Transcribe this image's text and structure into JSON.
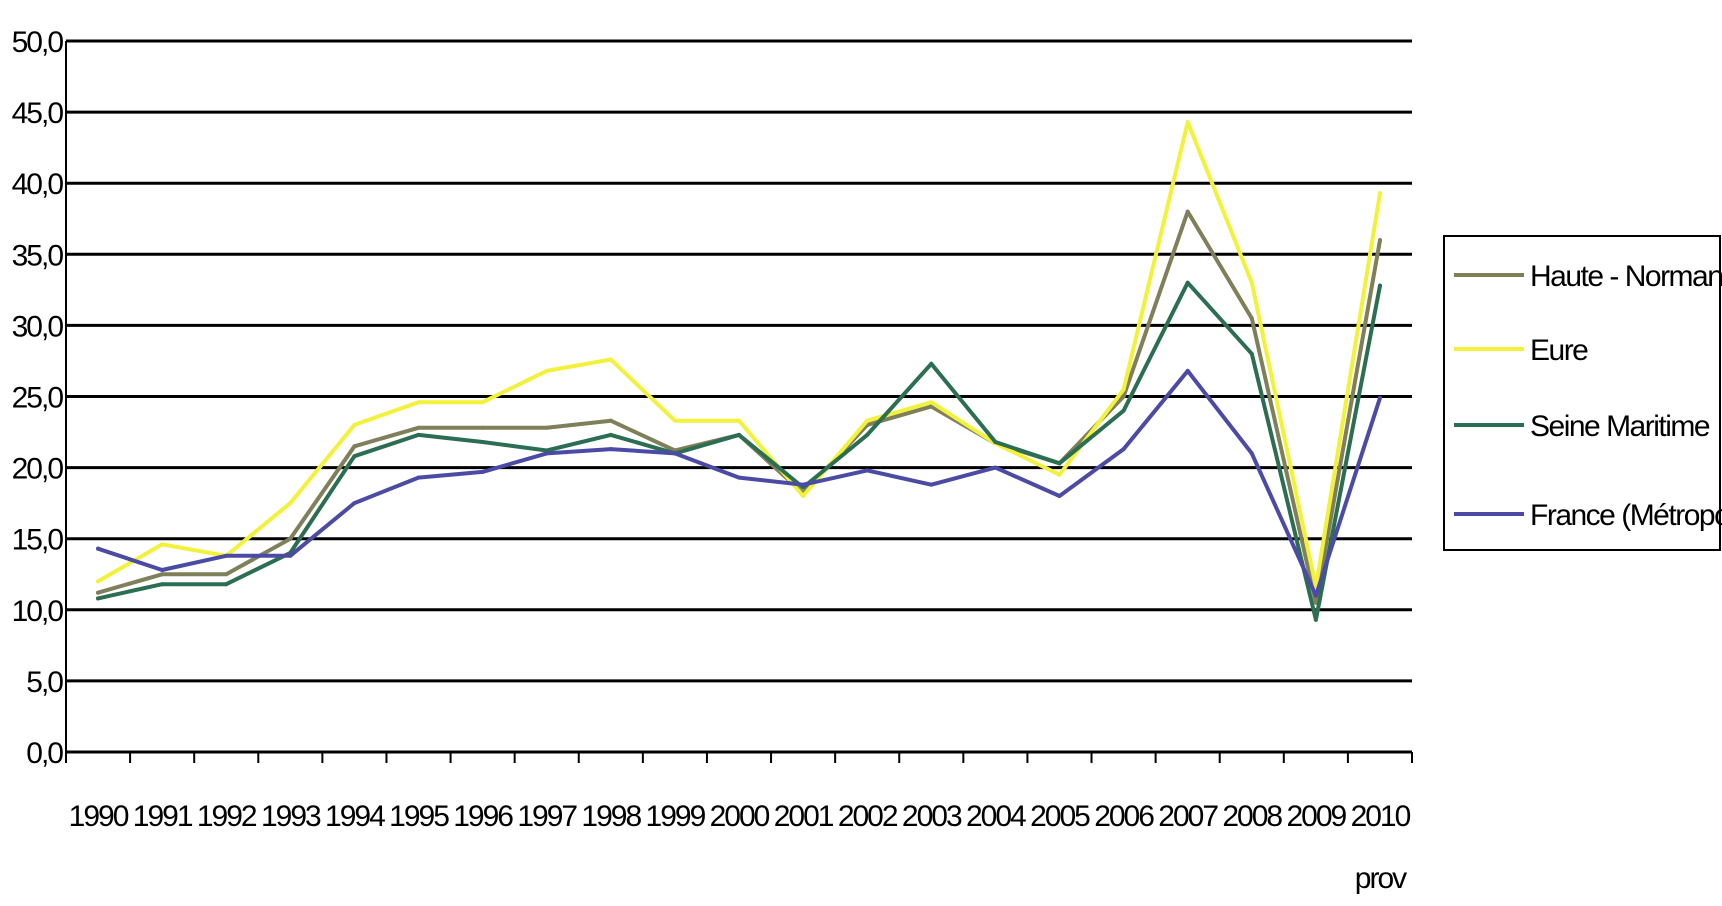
{
  "chart_data": {
    "type": "line",
    "title": "",
    "xlabel": "",
    "ylabel": "",
    "categories": [
      "1990",
      "1991",
      "1992",
      "1993",
      "1994",
      "1995",
      "1996",
      "1997",
      "1998",
      "1999",
      "2000",
      "2001",
      "2002",
      "2003",
      "2004",
      "2005",
      "2006",
      "2007",
      "2008",
      "2009",
      "2010"
    ],
    "last_category_sublabel": "prov",
    "ylim": [
      0,
      50
    ],
    "yticks": [
      0,
      5,
      10,
      15,
      20,
      25,
      30,
      35,
      40,
      45,
      50
    ],
    "ytick_labels": [
      "0,0",
      "5,0",
      "10,0",
      "15,0",
      "20,0",
      "25,0",
      "30,0",
      "35,0",
      "40,0",
      "45,0",
      "50,0"
    ],
    "grid": "horizontal",
    "legend_position": "right",
    "series": [
      {
        "name": "Haute - Normandie",
        "color": "#7f7f5a",
        "values": [
          11.2,
          12.5,
          12.5,
          15.0,
          21.5,
          22.8,
          22.8,
          22.8,
          23.3,
          21.2,
          22.3,
          18.2,
          23.0,
          24.3,
          21.7,
          20.3,
          25.0,
          38.0,
          30.5,
          10.5,
          36.0
        ]
      },
      {
        "name": "Eure",
        "color": "#f2f23c",
        "values": [
          12.0,
          14.6,
          13.8,
          17.5,
          23.0,
          24.6,
          24.6,
          26.8,
          27.6,
          23.3,
          23.3,
          18.0,
          23.3,
          24.6,
          21.7,
          19.5,
          25.5,
          44.3,
          33.0,
          11.6,
          39.3
        ]
      },
      {
        "name": "Seine Maritime",
        "color": "#2c6e52",
        "values": [
          10.8,
          11.8,
          11.8,
          14.0,
          20.8,
          22.3,
          21.8,
          21.2,
          22.3,
          21.0,
          22.3,
          18.6,
          22.3,
          27.3,
          21.8,
          20.3,
          24.0,
          33.0,
          28.0,
          9.3,
          32.8
        ]
      },
      {
        "name": "France (Métropole)",
        "color": "#4b4ba6",
        "values": [
          14.3,
          12.8,
          13.8,
          13.8,
          17.5,
          19.3,
          19.7,
          21.0,
          21.3,
          21.0,
          19.3,
          18.8,
          19.8,
          18.8,
          20.0,
          18.0,
          21.3,
          26.8,
          21.0,
          11.0,
          24.9
        ]
      }
    ]
  }
}
